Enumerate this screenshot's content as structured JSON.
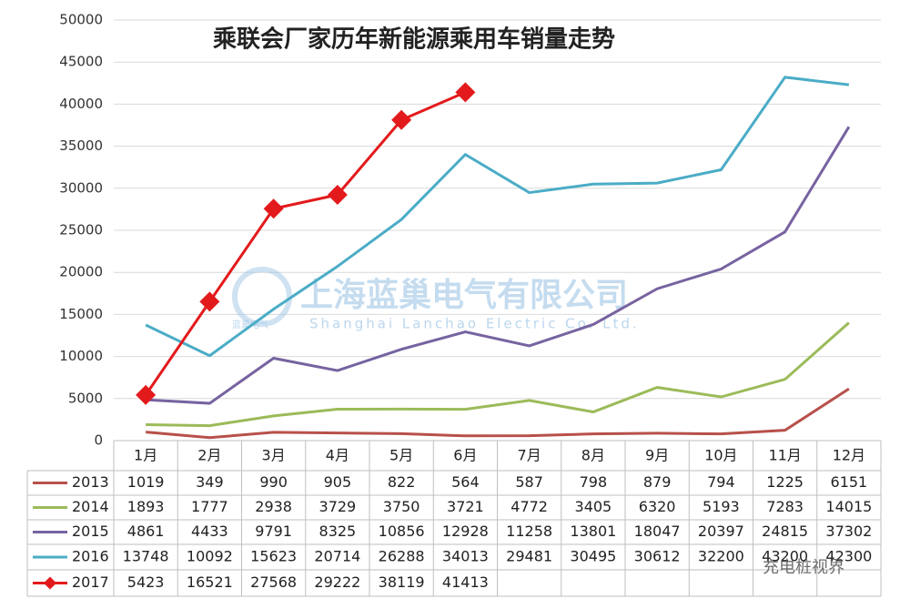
{
  "chart_data": {
    "type": "line",
    "title": "乘联会厂家历年新能源乘用车销量走势",
    "categories": [
      "1月",
      "2月",
      "3月",
      "4月",
      "5月",
      "6月",
      "7月",
      "8月",
      "9月",
      "10月",
      "11月",
      "12月"
    ],
    "series": [
      {
        "name": "2013",
        "color": "#b8504b",
        "values": [
          1019,
          349,
          990,
          905,
          822,
          564,
          587,
          798,
          879,
          794,
          1225,
          6151
        ]
      },
      {
        "name": "2014",
        "color": "#9bbb59",
        "values": [
          1893,
          1777,
          2938,
          3729,
          3750,
          3721,
          4772,
          3405,
          6320,
          5193,
          7283,
          14015
        ]
      },
      {
        "name": "2015",
        "color": "#7763a0",
        "values": [
          4861,
          4433,
          9791,
          8325,
          10856,
          12928,
          11258,
          13801,
          18047,
          20397,
          24815,
          37302
        ]
      },
      {
        "name": "2016",
        "color": "#4bacc6",
        "values": [
          13748,
          10092,
          15623,
          20714,
          26288,
          34013,
          29481,
          30495,
          30612,
          32200,
          43200,
          42300
        ]
      },
      {
        "name": "2017",
        "color": "#e31a1c",
        "marker": "diamond",
        "values": [
          5423,
          16521,
          27568,
          29222,
          38119,
          41413,
          null,
          null,
          null,
          null,
          null,
          null
        ]
      }
    ],
    "ylim": [
      0,
      50000
    ],
    "yticks": [
      0,
      5000,
      10000,
      15000,
      20000,
      25000,
      30000,
      35000,
      40000,
      45000,
      50000
    ],
    "grid": true,
    "watermark": [
      "上海蓝巢电气有限公司",
      "Shanghai Lanchao Electric Co. Ltd.",
      "蓝巢电气",
      "充电桩视界"
    ]
  }
}
